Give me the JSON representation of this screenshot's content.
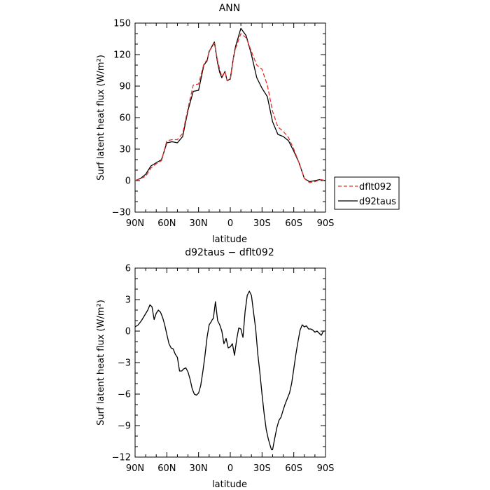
{
  "chart_data": [
    {
      "type": "line",
      "title": "ANN",
      "xlabel": "latitude",
      "ylabel": "Surf latent heat flux (W/m²)",
      "ylim": [
        -30,
        150
      ],
      "xlim": [
        90,
        -90
      ],
      "x_axis_note": "x runs from 90N (left) to 90S (right); values are degrees latitude, N positive",
      "xticks": [
        90,
        60,
        30,
        0,
        -30,
        -60,
        -90
      ],
      "xtick_labels": [
        "90N",
        "60N",
        "30N",
        "0",
        "30S",
        "60S",
        "90S"
      ],
      "yticks": [
        -30,
        0,
        30,
        60,
        90,
        120,
        150
      ],
      "ytick_labels": [
        "−30",
        "0",
        "30",
        "60",
        "90",
        "120",
        "150"
      ],
      "legend": {
        "position": "right",
        "entries": [
          "dflt092",
          "d92taus"
        ]
      },
      "series": [
        {
          "name": "dflt092",
          "color": "#e8302a",
          "dash": true,
          "x": [
            90,
            85,
            80,
            75,
            70,
            65,
            60,
            55,
            50,
            45,
            40,
            35,
            30,
            25,
            22,
            20,
            15,
            12,
            10,
            8,
            5,
            3,
            0,
            -3,
            -5,
            -10,
            -15,
            -20,
            -25,
            -30,
            -35,
            -40,
            -45,
            -50,
            -55,
            -60,
            -65,
            -70,
            -75,
            -80,
            -85,
            -90
          ],
          "values": [
            0,
            2,
            4,
            12,
            16,
            19,
            38,
            39,
            39,
            45,
            69,
            91,
            92,
            111,
            115,
            123,
            131,
            114,
            106,
            99,
            104,
            95,
            96,
            117,
            126,
            140,
            136,
            123,
            110,
            106,
            91,
            66,
            51,
            47,
            41,
            30,
            17,
            2,
            -2,
            -1,
            1,
            0
          ]
        },
        {
          "name": "d92taus",
          "color": "#000000",
          "dash": false,
          "x": [
            90,
            85,
            80,
            75,
            70,
            65,
            60,
            55,
            50,
            45,
            40,
            35,
            30,
            25,
            22,
            20,
            15,
            12,
            10,
            8,
            5,
            3,
            0,
            -3,
            -5,
            -10,
            -15,
            -20,
            -25,
            -30,
            -35,
            -40,
            -45,
            -50,
            -55,
            -60,
            -65,
            -70,
            -75,
            -80,
            -85,
            -90
          ],
          "values": [
            0,
            2,
            6,
            14,
            17,
            20,
            36,
            37,
            36,
            42,
            67,
            85,
            86,
            110,
            114,
            123,
            132,
            112,
            103,
            98,
            104,
            95,
            97,
            117,
            128,
            145,
            138,
            120,
            98,
            88,
            80,
            56,
            44,
            42,
            38,
            28,
            17,
            2,
            -1,
            0,
            1,
            0
          ]
        }
      ]
    },
    {
      "type": "line",
      "title": "d92taus − dflt092",
      "xlabel": "latitude",
      "ylabel": "Surf latent heat flux (W/m²)",
      "ylim": [
        -12,
        6
      ],
      "xlim": [
        90,
        -90
      ],
      "xticks": [
        90,
        60,
        30,
        0,
        -30,
        -60,
        -90
      ],
      "xtick_labels": [
        "90N",
        "60N",
        "30N",
        "0",
        "30S",
        "60S",
        "90S"
      ],
      "yticks": [
        -12,
        -9,
        -6,
        -3,
        0,
        3,
        6
      ],
      "ytick_labels": [
        "−12",
        "−9",
        "−6",
        "−3",
        "0",
        "3",
        "6"
      ],
      "series": [
        {
          "name": "",
          "color": "#000000",
          "dash": false,
          "x": [
            90,
            87,
            84,
            81,
            78,
            76,
            74,
            72,
            70,
            68,
            66,
            64,
            62,
            60,
            58,
            56,
            54,
            52,
            50,
            48,
            46,
            44,
            42,
            40,
            38,
            36,
            34,
            32,
            30,
            28,
            26,
            24,
            22,
            20,
            18,
            17,
            16,
            14,
            12,
            10,
            8,
            6,
            4,
            2,
            0,
            -2,
            -4,
            -6,
            -8,
            -10,
            -12,
            -14,
            -16,
            -18,
            -20,
            -22,
            -24,
            -26,
            -28,
            -30,
            -32,
            -34,
            -36,
            -38,
            -39,
            -40,
            -42,
            -44,
            -46,
            -48,
            -50,
            -52,
            -54,
            -56,
            -58,
            -60,
            -62,
            -64,
            -66,
            -68,
            -70,
            -72,
            -74,
            -76,
            -78,
            -80,
            -82,
            -84,
            -86,
            -88,
            -90
          ],
          "values": [
            0.4,
            0.6,
            1.0,
            1.5,
            2.0,
            2.5,
            2.3,
            1.1,
            1.7,
            2.0,
            1.8,
            1.3,
            0.6,
            -0.3,
            -1.2,
            -1.6,
            -1.7,
            -2.2,
            -2.5,
            -3.8,
            -3.8,
            -3.6,
            -3.5,
            -3.9,
            -4.6,
            -5.5,
            -6.0,
            -6.1,
            -5.9,
            -5.2,
            -3.9,
            -2.4,
            -0.6,
            0.6,
            0.9,
            1.1,
            1.2,
            2.8,
            1.0,
            0.6,
            0.0,
            -1.2,
            -0.7,
            -1.6,
            -1.5,
            -1.2,
            -2.3,
            -0.8,
            0.3,
            0.2,
            -0.6,
            1.9,
            3.4,
            3.8,
            3.4,
            1.8,
            0.2,
            -2.2,
            -4.0,
            -6.0,
            -7.9,
            -9.4,
            -10.3,
            -11.0,
            -11.3,
            -11.3,
            -10.2,
            -9.2,
            -8.5,
            -8.2,
            -7.5,
            -6.9,
            -6.4,
            -5.9,
            -5.0,
            -3.6,
            -2.2,
            -1.0,
            0.1,
            0.6,
            0.4,
            0.5,
            0.2,
            0.2,
            0.1,
            -0.1,
            0.0,
            -0.2,
            -0.4,
            0.0,
            0.0
          ]
        }
      ]
    }
  ]
}
